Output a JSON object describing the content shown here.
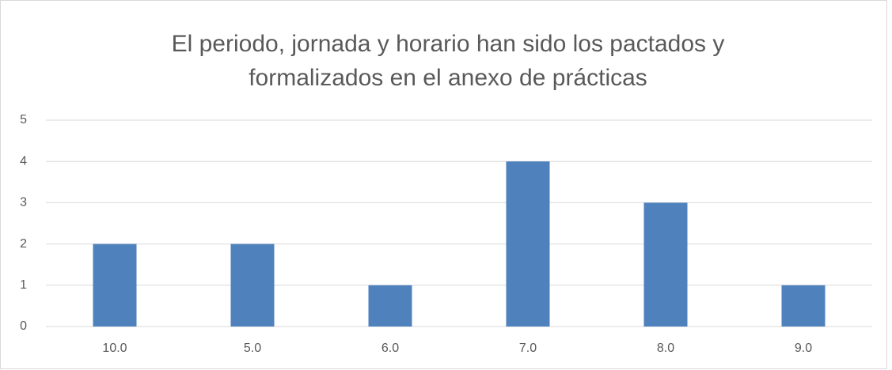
{
  "chart_data": {
    "type": "bar",
    "title": [
      "El periodo, jornada y horario han sido los pactados y",
      "formalizados en el anexo de prácticas"
    ],
    "categories": [
      "10.0",
      "5.0",
      "6.0",
      "7.0",
      "8.0",
      "9.0"
    ],
    "values": [
      2,
      2,
      1,
      4,
      3,
      1
    ],
    "color": "#4f81bd",
    "ylim": [
      0,
      5
    ],
    "yticks": [
      0,
      1,
      2,
      3,
      4,
      5
    ],
    "grid": true
  }
}
